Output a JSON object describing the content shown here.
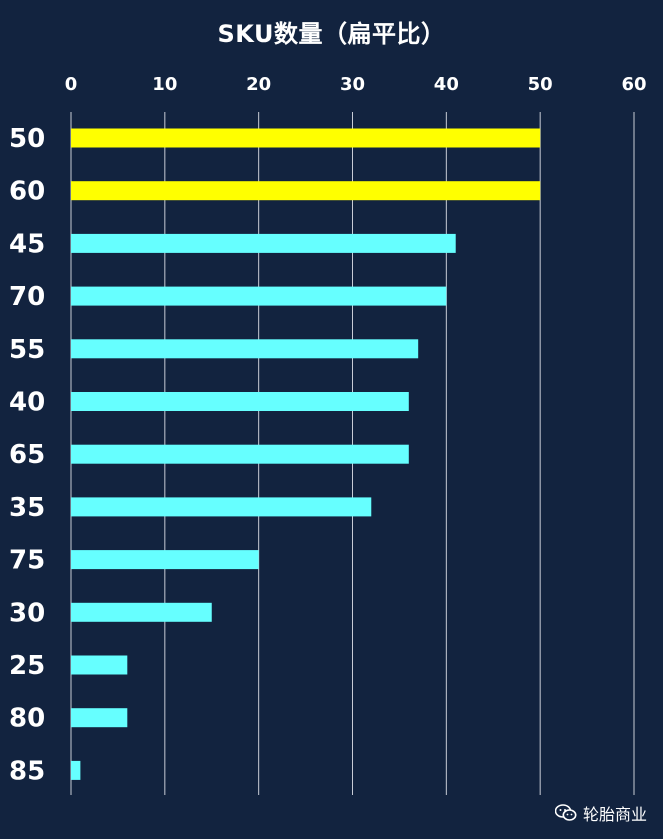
{
  "chart_data": {
    "type": "bar",
    "orientation": "horizontal",
    "title": "SKU数量（扁平比）",
    "categories": [
      "50",
      "60",
      "45",
      "70",
      "55",
      "40",
      "65",
      "35",
      "75",
      "30",
      "25",
      "80",
      "85"
    ],
    "values": [
      50,
      50,
      41,
      40,
      37,
      36,
      36,
      32,
      20,
      15,
      6,
      6,
      1
    ],
    "highlight": [
      "50",
      "60"
    ],
    "xlim": [
      0,
      60
    ],
    "xticks": [
      "0",
      "10",
      "20",
      "30",
      "40",
      "50",
      "60"
    ],
    "xaxis_position": "top",
    "grid": true,
    "colors": {
      "background": "#12233f",
      "bar": "#66ffff",
      "highlight": "#ffff00",
      "grid": "#c8ccd6",
      "text": "#ffffff"
    }
  },
  "watermark": {
    "icon": "wechat-icon",
    "text": "轮胎商业"
  }
}
